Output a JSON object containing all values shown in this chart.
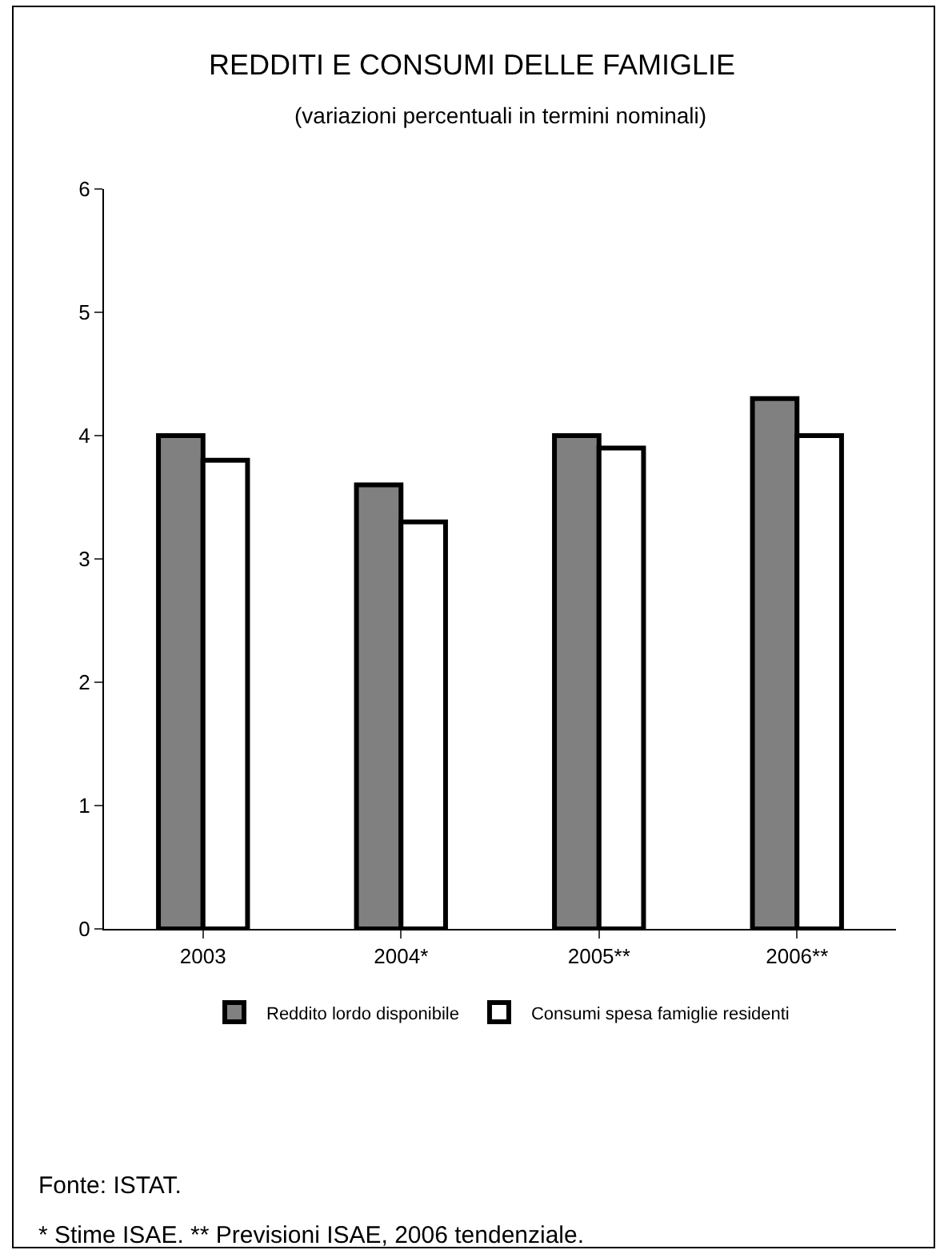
{
  "chart_data": {
    "type": "bar",
    "title": "REDDITI E CONSUMI DELLE FAMIGLIE",
    "subtitle": "(variazioni percentuali in termini nominali)",
    "categories": [
      "2003",
      "2004*",
      "2005**",
      "2006**"
    ],
    "series": [
      {
        "name": "Reddito lordo disponibile",
        "color": "#808080",
        "values": [
          4.0,
          3.6,
          4.0,
          4.3
        ]
      },
      {
        "name": "Consumi spesa famiglie residenti",
        "color": "#ffffff",
        "values": [
          3.8,
          3.3,
          3.9,
          4.0
        ]
      }
    ],
    "ylim": [
      0,
      6
    ],
    "yticks": [
      0,
      1,
      2,
      3,
      4,
      5,
      6
    ],
    "grid": false,
    "legend": "bottom",
    "annotations": [
      "Fonte: ISTAT.",
      "* Stime ISAE. ** Previsioni ISAE, 2006 tendenziale."
    ]
  }
}
